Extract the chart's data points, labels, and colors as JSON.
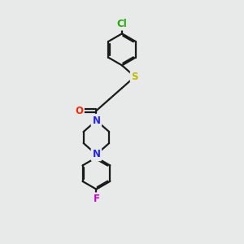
{
  "bg_color": "#e8eaea",
  "bond_color": "#1a1a1a",
  "bond_width": 1.6,
  "atom_labels": {
    "Cl": {
      "color": "#22aa00",
      "fontsize": 8.5,
      "fontweight": "bold"
    },
    "S": {
      "color": "#bbbb00",
      "fontsize": 8.5,
      "fontweight": "bold"
    },
    "O": {
      "color": "#ff2200",
      "fontsize": 8.5,
      "fontweight": "bold"
    },
    "N": {
      "color": "#2222ff",
      "fontsize": 8.5,
      "fontweight": "bold"
    },
    "F": {
      "color": "#cc00cc",
      "fontsize": 8.5,
      "fontweight": "bold"
    }
  },
  "figsize": [
    3.0,
    3.0
  ],
  "dpi": 100
}
